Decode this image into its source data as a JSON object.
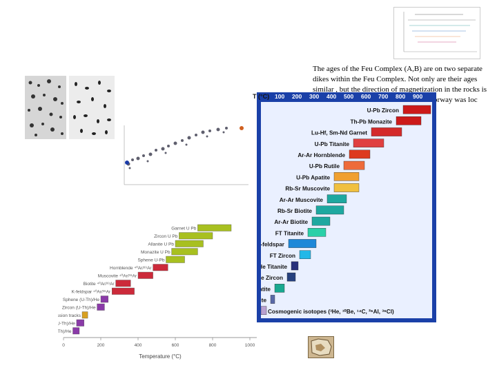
{
  "caption": {
    "line1": "The ages of the Feu Complex (A,B) are on two separate",
    "line2": "dikes within the Feu Complex.  Not only are their ages",
    "line3": "similar , but the direction of magnetization in the rocks is",
    "line4": "also identical and indicates that Oslo, Norway was loc"
  },
  "main_chart": {
    "axis_title": "T (°C)",
    "ticks": [
      "100",
      "200",
      "300",
      "400",
      "500",
      "600",
      "700",
      "800",
      "900"
    ],
    "colors": {
      "frame": "#1a40a8",
      "background": "#eaf0ff"
    },
    "systems": [
      {
        "label": "U-Pb Zircon",
        "color": "#cc1a1a"
      },
      {
        "label": "Th-Pb Monazite",
        "color": "#cc1a1a"
      },
      {
        "label": "Lu-Hf, Sm-Nd Garnet",
        "color": "#d42a2a"
      },
      {
        "label": "U-Pb Titanite",
        "color": "#e04040"
      },
      {
        "label": "Ar-Ar Hornblende",
        "color": "#dd3a1e"
      },
      {
        "label": "U-Pb Rutile",
        "color": "#ee6b3a"
      },
      {
        "label": "U-Pb Apatite",
        "color": "#f0a030"
      },
      {
        "label": "Rb-Sr Muscovite",
        "color": "#f0c040"
      },
      {
        "label": "Ar-Ar Muscovite",
        "color": "#1ea8a0"
      },
      {
        "label": "Rb-Sr Biotite",
        "color": "#1ea8a0"
      },
      {
        "label": "Ar-Ar Biotite",
        "color": "#1ea8a0"
      },
      {
        "label": "FT Titanite",
        "color": "#2ad0a8"
      },
      {
        "label": "Ar-Ar K-feldspar",
        "color": "#1e88d8"
      },
      {
        "label": "FT Zircon",
        "color": "#22b8e8"
      },
      {
        "label": "(U-Th)/He Titanite",
        "color": "#28307a"
      },
      {
        "label": "(U-Th)/He Zircon",
        "color": "#26407e"
      },
      {
        "label": "FT Apatite",
        "color": "#18a890"
      },
      {
        "label": "(U-Th)/He Apatite",
        "color": "#5a6aa8"
      },
      {
        "label": "Cosmogenic isotopes (³He, ¹⁰Be, ¹⁴C, ²⁶Al, ³⁶Cl)",
        "color": "#b8a0d0"
      }
    ]
  },
  "left_chart": {
    "axis_title": "Temperature (°C)",
    "ticks": [
      "0",
      "200",
      "400",
      "600",
      "800",
      "1000"
    ],
    "systems": [
      {
        "label": "Garnet U Pb",
        "color": "#a8c020"
      },
      {
        "label": "Zircon U Pb",
        "color": "#a8c020"
      },
      {
        "label": "Allanite U Pb",
        "color": "#a8c020"
      },
      {
        "label": "Monazite U Pb",
        "color": "#a8c020"
      },
      {
        "label": "Sphene U-Pb",
        "color": "#a8c020"
      },
      {
        "label": "Hornblende ⁴⁰Ar/³⁹Ar",
        "color": "#cc2a3a"
      },
      {
        "label": "Muscovite ⁴⁰Ar/³⁹Ar",
        "color": "#cc2a3a"
      },
      {
        "label": "Biotite ⁴⁰Ar/³⁹Ar",
        "color": "#cc2a3a"
      },
      {
        "label": "K-feldspar ⁴⁰Ar/³⁹Ar",
        "color": "#cc2a3a"
      },
      {
        "label": "Sphene (U-Th)/He",
        "color": "#8a3aa8"
      },
      {
        "label": "Zircon (U-Th)/He",
        "color": "#8a3aa8"
      },
      {
        "label": "Apatite fission tracks",
        "color": "#d8a020"
      },
      {
        "label": "Fluorite (U-Th)/He",
        "color": "#8a3aa8"
      },
      {
        "label": "Apatite (U-Th)/He",
        "color": "#8a3aa8"
      }
    ]
  }
}
